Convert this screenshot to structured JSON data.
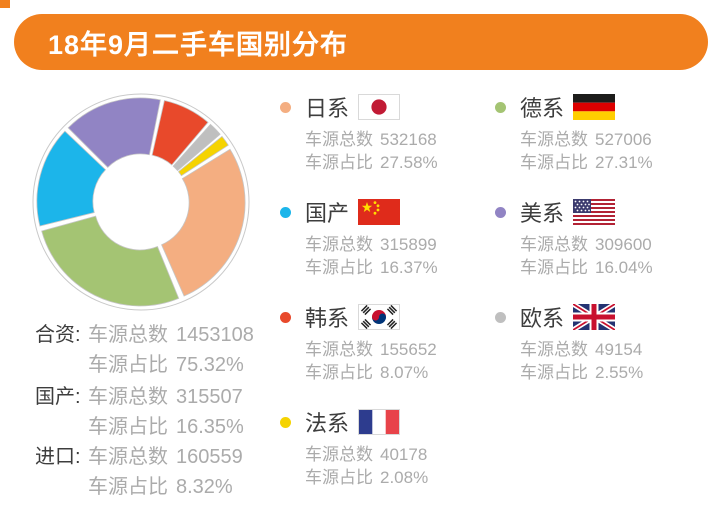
{
  "title": "18年9月二手车国别分布",
  "labels": {
    "count_prefix": "车源总数",
    "pct_prefix": "车源占比",
    "colon": ":"
  },
  "colors": {
    "banner_orange": "#F1801E",
    "legend_text": "#3D3D3D",
    "stats_text": "#ABABAB"
  },
  "chart_data": {
    "type": "pie",
    "subtype": "donut",
    "title": "18年9月二手车国别分布",
    "start_angle_deg": 12,
    "legend_position": "right",
    "segments": [
      {
        "id": "kr",
        "label": "韩系",
        "flag_icon": "korea-flag-icon",
        "color": "#E8492B",
        "count": "155652",
        "pct": 8.07,
        "pct_text": "8.07%"
      },
      {
        "id": "eu",
        "label": "欧系",
        "flag_icon": "uk-flag-icon",
        "color": "#BFBFBF",
        "count": "49154",
        "pct": 2.55,
        "pct_text": "2.55%"
      },
      {
        "id": "fr",
        "label": "法系",
        "flag_icon": "france-flag-icon",
        "color": "#F5D301",
        "count": "40178",
        "pct": 2.08,
        "pct_text": "2.08%"
      },
      {
        "id": "jp",
        "label": "日系",
        "flag_icon": "japan-flag-icon",
        "color": "#F4AE81",
        "count": "532168",
        "pct": 27.58,
        "pct_text": "27.58%"
      },
      {
        "id": "de",
        "label": "德系",
        "flag_icon": "germany-flag-icon",
        "color": "#A4C473",
        "count": "527006",
        "pct": 27.31,
        "pct_text": "27.31%"
      },
      {
        "id": "cn",
        "label": "国产",
        "flag_icon": "china-flag-icon",
        "color": "#1CB5EA",
        "count": "315899",
        "pct": 16.37,
        "pct_text": "16.37%"
      },
      {
        "id": "us",
        "label": "美系",
        "flag_icon": "usa-flag-icon",
        "color": "#9184C4",
        "count": "309600",
        "pct": 16.04,
        "pct_text": "16.04%"
      }
    ],
    "summary": {
      "rows": [
        {
          "label": "合资",
          "count": "1453108",
          "pct_text": "75.32%"
        },
        {
          "label": "国产",
          "count": "315507",
          "pct_text": "16.35%"
        },
        {
          "label": "进口",
          "count": "160559",
          "pct_text": "8.32%"
        }
      ]
    }
  }
}
